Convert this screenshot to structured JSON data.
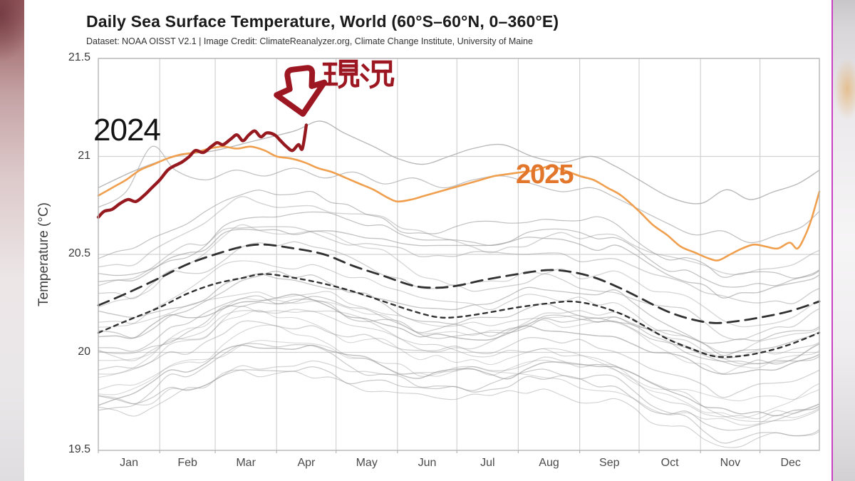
{
  "header": {
    "title": "Daily Sea Surface Temperature, World (60°S–60°N, 0–360°E)",
    "subtitle": "Dataset: NOAA OISST V2.1 | Image Credit: ClimateReanalyzer.org, Climate Change Institute, University of Maine"
  },
  "axes": {
    "y_title": "Temperature (°C)",
    "y_ticks": [
      {
        "label": "21.5",
        "value": 21.5
      },
      {
        "label": "21",
        "value": 21.0
      },
      {
        "label": "20.5",
        "value": 20.5
      },
      {
        "label": "20",
        "value": 20.0
      },
      {
        "label": "19.5",
        "value": 19.5
      }
    ],
    "x_labels": [
      "Jan",
      "Feb",
      "Mar",
      "Apr",
      "May",
      "Jun",
      "Jul",
      "Aug",
      "Sep",
      "Oct",
      "Nov",
      "Dec"
    ],
    "month_days": [
      31,
      28,
      31,
      30,
      31,
      30,
      31,
      31,
      30,
      31,
      30,
      31
    ]
  },
  "annotations": {
    "label_2024": {
      "text": "2024",
      "color": "#141414"
    },
    "label_2025": {
      "text": "2025",
      "color": "#e2762a"
    },
    "current_label": {
      "text": "現況",
      "color": "#9c1722"
    },
    "arrow": {
      "name": "down-block-arrow",
      "color": "#9c1722",
      "fill": "#ffffff"
    }
  },
  "colors": {
    "dark_red_line": "#96191f",
    "orange_line": "#f09f4e",
    "dashed_black": "#1f1f1f",
    "gray_lines": "#969696",
    "grid": "#d2d2d2",
    "plot_border": "#b5b5b5",
    "magenta_edge": "#cb41c6"
  },
  "chart_data": {
    "type": "line",
    "title": "Daily Sea Surface Temperature, World (60°S–60°N, 0–360°E)",
    "xlabel": "",
    "ylabel": "Temperature (°C)",
    "ylim": [
      19.5,
      21.5
    ],
    "x_unit": "day_of_year",
    "grid": true,
    "legend": false,
    "series": [
      {
        "name": "dark-red-current-year",
        "note": "thick dark red line ending in early April; '現況' arrow points at its end; black '2024' label sits nearby",
        "color": "#96191f",
        "width": 4.4,
        "dash": "none",
        "opacity": 1,
        "points": [
          [
            1,
            20.69
          ],
          [
            4,
            20.72
          ],
          [
            8,
            20.73
          ],
          [
            12,
            20.76
          ],
          [
            16,
            20.78
          ],
          [
            20,
            20.77
          ],
          [
            24,
            20.8
          ],
          [
            28,
            20.84
          ],
          [
            32,
            20.88
          ],
          [
            36,
            20.93
          ],
          [
            39,
            20.95
          ],
          [
            43,
            20.97
          ],
          [
            47,
            21.0
          ],
          [
            50,
            21.03
          ],
          [
            54,
            21.02
          ],
          [
            58,
            21.05
          ],
          [
            61,
            21.07
          ],
          [
            64,
            21.06
          ],
          [
            68,
            21.09
          ],
          [
            71,
            21.11
          ],
          [
            74,
            21.08
          ],
          [
            77,
            21.11
          ],
          [
            80,
            21.13
          ],
          [
            83,
            21.1
          ],
          [
            86,
            21.12
          ],
          [
            90,
            21.11
          ],
          [
            93,
            21.08
          ],
          [
            96,
            21.05
          ],
          [
            99,
            21.03
          ],
          [
            102,
            21.06
          ],
          [
            104,
            21.04
          ],
          [
            106,
            21.16
          ]
        ]
      },
      {
        "name": "orange-full-year-2025",
        "note": "orange line spanning the whole year; orange '2025' label sits on it",
        "color": "#f09f4e",
        "width": 2.6,
        "dash": "none",
        "opacity": 1,
        "points": [
          [
            1,
            20.8
          ],
          [
            8,
            20.84
          ],
          [
            15,
            20.88
          ],
          [
            22,
            20.93
          ],
          [
            29,
            20.96
          ],
          [
            36,
            20.99
          ],
          [
            43,
            21.01
          ],
          [
            50,
            21.02
          ],
          [
            57,
            21.04
          ],
          [
            64,
            21.05
          ],
          [
            71,
            21.04
          ],
          [
            78,
            21.05
          ],
          [
            85,
            21.03
          ],
          [
            91,
            21.0
          ],
          [
            98,
            20.99
          ],
          [
            105,
            20.97
          ],
          [
            112,
            20.94
          ],
          [
            119,
            20.92
          ],
          [
            126,
            20.89
          ],
          [
            133,
            20.86
          ],
          [
            140,
            20.83
          ],
          [
            147,
            20.79
          ],
          [
            152,
            20.77
          ],
          [
            159,
            20.78
          ],
          [
            166,
            20.8
          ],
          [
            173,
            20.82
          ],
          [
            180,
            20.84
          ],
          [
            187,
            20.86
          ],
          [
            194,
            20.88
          ],
          [
            201,
            20.9
          ],
          [
            208,
            20.91
          ],
          [
            215,
            20.92
          ],
          [
            222,
            20.93
          ],
          [
            229,
            20.95
          ],
          [
            236,
            20.93
          ],
          [
            244,
            20.9
          ],
          [
            251,
            20.88
          ],
          [
            258,
            20.84
          ],
          [
            265,
            20.8
          ],
          [
            274,
            20.72
          ],
          [
            281,
            20.65
          ],
          [
            288,
            20.6
          ],
          [
            295,
            20.54
          ],
          [
            302,
            20.51
          ],
          [
            309,
            20.48
          ],
          [
            314,
            20.47
          ],
          [
            320,
            20.5
          ],
          [
            326,
            20.53
          ],
          [
            332,
            20.55
          ],
          [
            338,
            20.54
          ],
          [
            344,
            20.53
          ],
          [
            350,
            20.56
          ],
          [
            354,
            20.53
          ],
          [
            358,
            20.6
          ],
          [
            361,
            20.68
          ],
          [
            365,
            20.82
          ]
        ]
      },
      {
        "name": "dashed-long-black",
        "note": "long-dash black reference curve (upper)",
        "color": "#1f1f1f",
        "width": 2.8,
        "dash": "16 9",
        "opacity": 0.92,
        "points": [
          [
            1,
            20.24
          ],
          [
            15,
            20.3
          ],
          [
            32,
            20.38
          ],
          [
            46,
            20.45
          ],
          [
            60,
            20.5
          ],
          [
            74,
            20.54
          ],
          [
            85,
            20.55
          ],
          [
            100,
            20.53
          ],
          [
            115,
            20.5
          ],
          [
            130,
            20.44
          ],
          [
            145,
            20.39
          ],
          [
            160,
            20.34
          ],
          [
            172,
            20.33
          ],
          [
            182,
            20.34
          ],
          [
            196,
            20.37
          ],
          [
            213,
            20.4
          ],
          [
            228,
            20.42
          ],
          [
            240,
            20.41
          ],
          [
            252,
            20.38
          ],
          [
            264,
            20.33
          ],
          [
            274,
            20.28
          ],
          [
            288,
            20.21
          ],
          [
            300,
            20.17
          ],
          [
            312,
            20.15
          ],
          [
            324,
            20.16
          ],
          [
            336,
            20.18
          ],
          [
            350,
            20.21
          ],
          [
            365,
            20.26
          ]
        ]
      },
      {
        "name": "dashed-short-black",
        "note": "short-dash black reference curve (lower)",
        "color": "#1f1f1f",
        "width": 2.4,
        "dash": "6 6",
        "opacity": 0.92,
        "points": [
          [
            1,
            20.1
          ],
          [
            15,
            20.16
          ],
          [
            32,
            20.23
          ],
          [
            46,
            20.3
          ],
          [
            60,
            20.35
          ],
          [
            74,
            20.38
          ],
          [
            85,
            20.4
          ],
          [
            100,
            20.38
          ],
          [
            115,
            20.35
          ],
          [
            130,
            20.31
          ],
          [
            145,
            20.26
          ],
          [
            160,
            20.21
          ],
          [
            172,
            20.18
          ],
          [
            182,
            20.18
          ],
          [
            196,
            20.2
          ],
          [
            213,
            20.23
          ],
          [
            228,
            20.25
          ],
          [
            240,
            20.26
          ],
          [
            252,
            20.24
          ],
          [
            264,
            20.2
          ],
          [
            274,
            20.15
          ],
          [
            288,
            20.07
          ],
          [
            300,
            20.02
          ],
          [
            312,
            19.98
          ],
          [
            324,
            19.98
          ],
          [
            336,
            20.0
          ],
          [
            350,
            20.04
          ],
          [
            365,
            20.1
          ]
        ]
      },
      {
        "name": "warm-gray-year-a",
        "note": "warmest gray background year (upper envelope)",
        "color": "#adadad",
        "width": 1.4,
        "dash": "none",
        "opacity": 0.85,
        "points": [
          [
            1,
            20.84
          ],
          [
            20,
            20.93
          ],
          [
            40,
            21.0
          ],
          [
            60,
            21.03
          ],
          [
            80,
            21.08
          ],
          [
            100,
            21.13
          ],
          [
            113,
            21.18
          ],
          [
            125,
            21.12
          ],
          [
            140,
            21.05
          ],
          [
            152,
            20.99
          ],
          [
            165,
            20.96
          ],
          [
            178,
            21.0
          ],
          [
            190,
            21.04
          ],
          [
            205,
            21.06
          ],
          [
            220,
            21.0
          ],
          [
            235,
            20.97
          ],
          [
            250,
            21.0
          ],
          [
            262,
            20.95
          ],
          [
            274,
            20.88
          ],
          [
            290,
            20.79
          ],
          [
            305,
            20.76
          ],
          [
            318,
            20.83
          ],
          [
            330,
            20.78
          ],
          [
            342,
            20.82
          ],
          [
            354,
            20.86
          ],
          [
            365,
            20.93
          ]
        ]
      },
      {
        "name": "warm-gray-year-b",
        "note": "second warm gray background year",
        "color": "#b3b3b3",
        "width": 1.3,
        "dash": "none",
        "opacity": 0.8,
        "points": [
          [
            1,
            20.74
          ],
          [
            15,
            20.82
          ],
          [
            28,
            21.05
          ],
          [
            40,
            20.93
          ],
          [
            55,
            20.88
          ],
          [
            70,
            20.93
          ],
          [
            85,
            20.9
          ],
          [
            100,
            20.94
          ],
          [
            115,
            20.89
          ],
          [
            130,
            20.92
          ],
          [
            145,
            20.86
          ],
          [
            160,
            20.89
          ],
          [
            175,
            20.84
          ],
          [
            190,
            20.88
          ],
          [
            205,
            20.9
          ],
          [
            220,
            20.86
          ],
          [
            235,
            20.82
          ],
          [
            250,
            20.84
          ],
          [
            262,
            20.79
          ],
          [
            274,
            20.73
          ],
          [
            288,
            20.66
          ],
          [
            302,
            20.6
          ],
          [
            316,
            20.62
          ],
          [
            330,
            20.56
          ],
          [
            344,
            20.6
          ],
          [
            356,
            20.64
          ],
          [
            365,
            20.72
          ]
        ]
      }
    ],
    "background_years": {
      "note": "~28 thin gray spaghetti lines of historical years between ~19.65 and ~20.6",
      "count": 26,
      "color": "#969696",
      "monthly_base": [
        20.15,
        20.27,
        20.4,
        20.38,
        20.3,
        20.22,
        20.22,
        20.27,
        20.24,
        20.12,
        20.02,
        20.05
      ],
      "offset_range": [
        -0.44,
        0.34
      ],
      "wiggle": 0.07
    }
  }
}
